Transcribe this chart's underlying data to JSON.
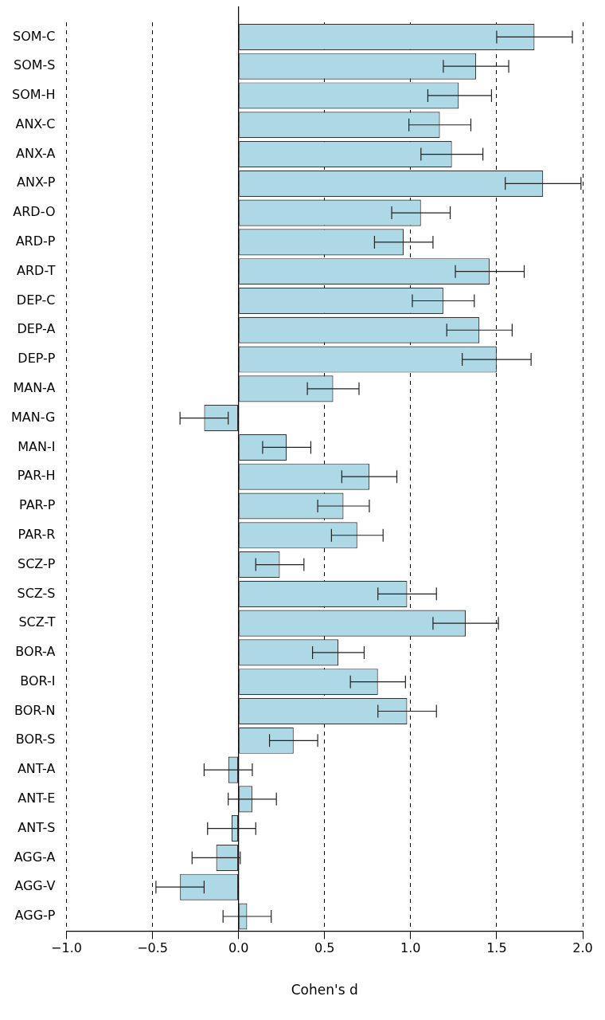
{
  "chart_data": {
    "type": "bar",
    "orientation": "horizontal",
    "xlabel": "Cohen's d",
    "categories": [
      "SOM-C",
      "SOM-S",
      "SOM-H",
      "ANX-C",
      "ANX-A",
      "ANX-P",
      "ARD-O",
      "ARD-P",
      "ARD-T",
      "DEP-C",
      "DEP-A",
      "DEP-P",
      "MAN-A",
      "MAN-G",
      "MAN-I",
      "PAR-H",
      "PAR-P",
      "PAR-R",
      "SCZ-P",
      "SCZ-S",
      "SCZ-T",
      "BOR-A",
      "BOR-I",
      "BOR-N",
      "BOR-S",
      "ANT-A",
      "ANT-E",
      "ANT-S",
      "AGG-A",
      "AGG-V",
      "AGG-P"
    ],
    "series": [
      {
        "color": "#add8e6",
        "values": [
          1.72,
          1.38,
          1.28,
          1.17,
          1.24,
          1.77,
          1.06,
          0.96,
          1.46,
          1.19,
          1.4,
          1.5,
          0.55,
          -0.2,
          0.28,
          0.76,
          0.61,
          0.69,
          0.24,
          0.98,
          1.32,
          0.58,
          0.81,
          0.98,
          0.32,
          -0.06,
          0.08,
          -0.04,
          -0.13,
          -0.34,
          0.05
        ],
        "errors": [
          [
            1.5,
            1.94
          ],
          [
            1.19,
            1.57
          ],
          [
            1.1,
            1.47
          ],
          [
            0.99,
            1.35
          ],
          [
            1.06,
            1.42
          ],
          [
            1.55,
            1.99
          ],
          [
            0.89,
            1.23
          ],
          [
            0.79,
            1.13
          ],
          [
            1.26,
            1.66
          ],
          [
            1.01,
            1.37
          ],
          [
            1.21,
            1.59
          ],
          [
            1.3,
            1.7
          ],
          [
            0.4,
            0.7
          ],
          [
            -0.34,
            -0.06
          ],
          [
            0.14,
            0.42
          ],
          [
            0.6,
            0.92
          ],
          [
            0.46,
            0.76
          ],
          [
            0.54,
            0.84
          ],
          [
            0.1,
            0.38
          ],
          [
            0.81,
            1.15
          ],
          [
            1.13,
            1.51
          ],
          [
            0.43,
            0.73
          ],
          [
            0.65,
            0.97
          ],
          [
            0.81,
            1.15
          ],
          [
            0.18,
            0.46
          ],
          [
            -0.2,
            0.08
          ],
          [
            -0.06,
            0.22
          ],
          [
            -0.18,
            0.1
          ],
          [
            -0.27,
            0.01
          ],
          [
            -0.48,
            -0.2
          ],
          [
            -0.09,
            0.19
          ]
        ]
      }
    ],
    "xlim": [
      -1,
      2
    ],
    "xticks": [
      {
        "value": -1,
        "label": "−1.0"
      },
      {
        "value": -0.5,
        "label": "−0.5"
      },
      {
        "value": 0,
        "label": "0.0"
      },
      {
        "value": 0.5,
        "label": "0.5"
      },
      {
        "value": 1,
        "label": "1.0"
      },
      {
        "value": 1.5,
        "label": "1.5"
      },
      {
        "value": 2,
        "label": "2.0"
      }
    ],
    "grid": "x",
    "legend": false,
    "ref_lines": [
      {
        "axis": "x",
        "value": 0,
        "color": "#000000",
        "line_style": "solid"
      }
    ]
  }
}
